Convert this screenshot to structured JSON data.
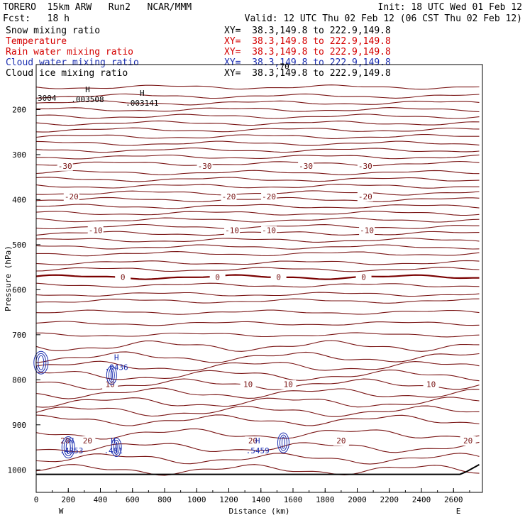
{
  "header": {
    "model": "TORERO  15km ARW   Run2   NCAR/MMM",
    "init": "Init: 18 UTC Wed 01 Feb 12",
    "fcst": "Fcst:   18 h",
    "valid": "Valid: 12 UTC Thu 02 Feb 12 (06 CST Thu 02 Feb 12)"
  },
  "fields": [
    {
      "label": "Snow mixing ratio",
      "xy": "XY=  38.3,149.8 to 222.9,149.8",
      "color": "#000000"
    },
    {
      "label": "Temperature",
      "xy": "XY=  38.3,149.8 to 222.9,149.8",
      "color": "#d40000"
    },
    {
      "label": "Rain water mixing ratio",
      "xy": "XY=  38.3,149.8 to 222.9,149.8",
      "color": "#d40000"
    },
    {
      "label": "Cloud water mixing ratio",
      "xy": "XY=  38.3,149.8 to 222.9,149.8",
      "color": "#1c2fb0"
    },
    {
      "label": "Cloud ice mixing ratio",
      "xy": "XY=  38.3,149.8 to 222.9,149.8",
      "color": "#000000"
    }
  ],
  "chart_data": {
    "type": "contour-cross-section",
    "xlabel": "Distance (km)",
    "ylabel": "Pressure (hPa)",
    "xlim": [
      0,
      2780
    ],
    "ylim": [
      1050,
      100
    ],
    "x_ticks": [
      0,
      200,
      400,
      600,
      800,
      1000,
      1200,
      1400,
      1600,
      1800,
      2000,
      2200,
      2400,
      2600
    ],
    "y_ticks": [
      200,
      300,
      400,
      500,
      600,
      700,
      800,
      900,
      1000
    ],
    "x_end_labels": {
      "left": "W",
      "right": "E"
    },
    "temperature_contours": [
      {
        "value": -30,
        "p": 325,
        "labels_x": [
          180,
          1050,
          1680,
          2050
        ]
      },
      {
        "value": -20,
        "p": 393,
        "labels_x": [
          220,
          1200,
          1450,
          2050
        ]
      },
      {
        "value": -10,
        "p": 468,
        "labels_x": [
          370,
          1220,
          1450,
          2060
        ]
      },
      {
        "value": 0,
        "p": 572,
        "labels_x": [
          540,
          1130,
          1510,
          2040
        ]
      },
      {
        "value": 10,
        "p": 810,
        "labels_x": [
          460,
          1320,
          1570,
          2460
        ]
      },
      {
        "value": 20,
        "p": 935,
        "labels_x": [
          180,
          320,
          1350,
          1900,
          2690
        ]
      }
    ],
    "temperature_levels_hpa": [
      150,
      170,
      185,
      200,
      215,
      230,
      245,
      260,
      275,
      290,
      305,
      320,
      340,
      355,
      370,
      385,
      400,
      415,
      430,
      445,
      460,
      475,
      490,
      505,
      520,
      540,
      555,
      572,
      590,
      610,
      625,
      650,
      675,
      700,
      725,
      750,
      770,
      790,
      810,
      830,
      850,
      870,
      890,
      920,
      950,
      975,
      1000
    ],
    "maxima_labels": [
      {
        "text": ".003508",
        "x": 320,
        "p": 180
      },
      {
        "text": ".003141",
        "x": 660,
        "p": 188
      },
      {
        "text": ".0436",
        "x": 500,
        "p": 775
      },
      {
        "text": ".4853",
        "x": 220,
        "p": 960
      },
      {
        "text": ".481",
        "x": 480,
        "p": 960
      },
      {
        "text": ".5459",
        "x": 1380,
        "p": 960
      }
    ],
    "edge_labels": [
      {
        "text": "3004",
        "x": 0,
        "p": 180
      },
      {
        "text": ".70",
        "x": 1480,
        "p": 110
      }
    ]
  }
}
